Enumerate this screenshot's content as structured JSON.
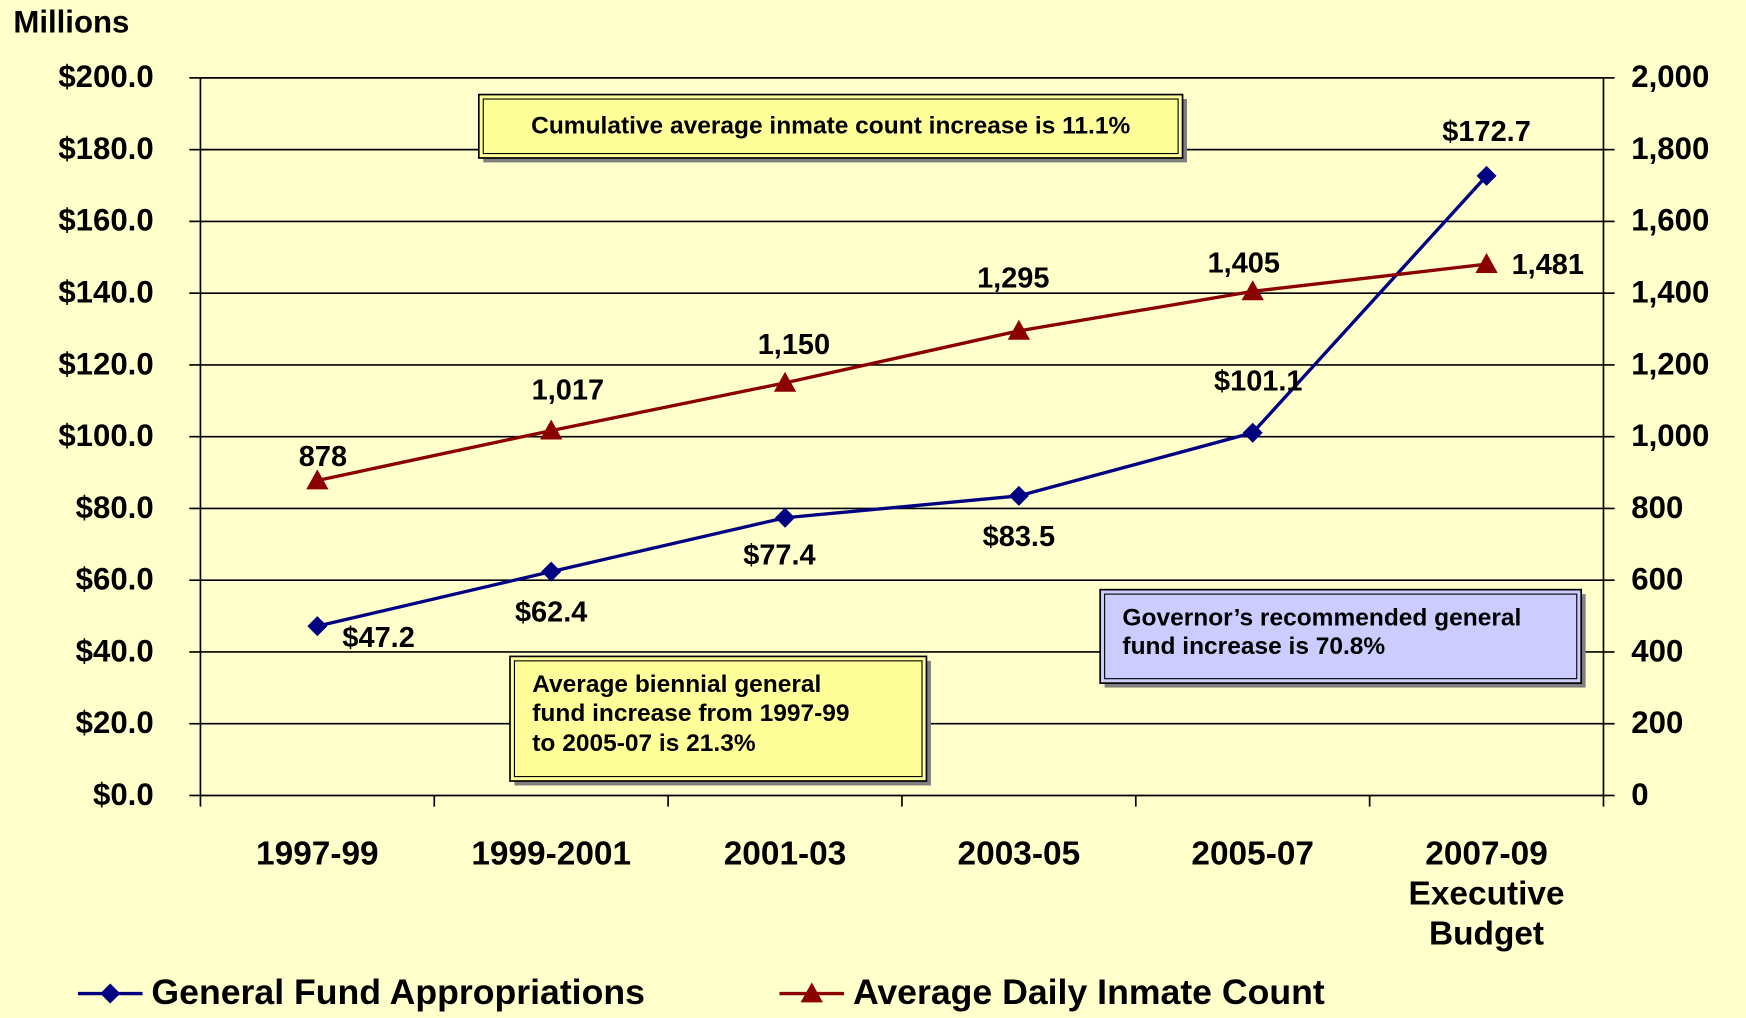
{
  "chart_data": {
    "type": "line",
    "y_axis_label": "Millions",
    "categories": [
      "1997-99",
      "1999-2001",
      "2001-03",
      "2003-05",
      "2005-07",
      "2007-09\nExecutive\nBudget"
    ],
    "ylim": [
      0,
      200
    ],
    "yticks": [
      {
        "value": 0,
        "label": "$0.0"
      },
      {
        "value": 20,
        "label": "$20.0"
      },
      {
        "value": 40,
        "label": "$40.0"
      },
      {
        "value": 60,
        "label": "$60.0"
      },
      {
        "value": 80,
        "label": "$80.0"
      },
      {
        "value": 100,
        "label": "$100.0"
      },
      {
        "value": 120,
        "label": "$120.0"
      },
      {
        "value": 140,
        "label": "$140.0"
      },
      {
        "value": 160,
        "label": "$160.0"
      },
      {
        "value": 180,
        "label": "$180.0"
      },
      {
        "value": 200,
        "label": "$200.0"
      }
    ],
    "y2lim": [
      0,
      2000
    ],
    "y2ticks": [
      0,
      200,
      400,
      600,
      800,
      {
        "value": 1000,
        "label": "1,000"
      },
      {
        "value": 1200,
        "label": "1,200"
      },
      {
        "value": 1400,
        "label": "1,400"
      },
      {
        "value": 1600,
        "label": "1,600"
      },
      {
        "value": 1800,
        "label": "1,800"
      },
      {
        "value": 2000,
        "label": "2,000"
      }
    ],
    "grid": true,
    "legend": "bottom",
    "series": [
      {
        "name": "General Fund Appropriations",
        "color": "#000080",
        "marker": "diamond",
        "values": [
          47.2,
          62.4,
          77.4,
          83.5,
          101.1,
          172.7
        ],
        "value_labels": [
          "$47.2",
          "$62.4",
          "$77.4",
          "$83.5",
          "$101.1",
          "$172.7"
        ]
      },
      {
        "name": "Average Daily Inmate Count",
        "color": "#8b0000",
        "marker": "triangle",
        "axis": "y2",
        "values": [
          878,
          1017,
          1150,
          1295,
          1405,
          1481
        ],
        "value_labels": [
          "878",
          "1,017",
          "1,150",
          "1,295",
          "1,405",
          "1,481"
        ]
      }
    ],
    "annotations": [
      {
        "text": "Cumulative average inmate count increase is 11.1%",
        "color": "#ffff99"
      },
      {
        "text": "Average biennial general\nfund increase from 1997-99\nto 2005-07 is 21.3%",
        "color": "#ffff99"
      },
      {
        "text": "Governor’s recommended general\nfund increase is 70.8%",
        "color": "#ccccff"
      }
    ]
  }
}
